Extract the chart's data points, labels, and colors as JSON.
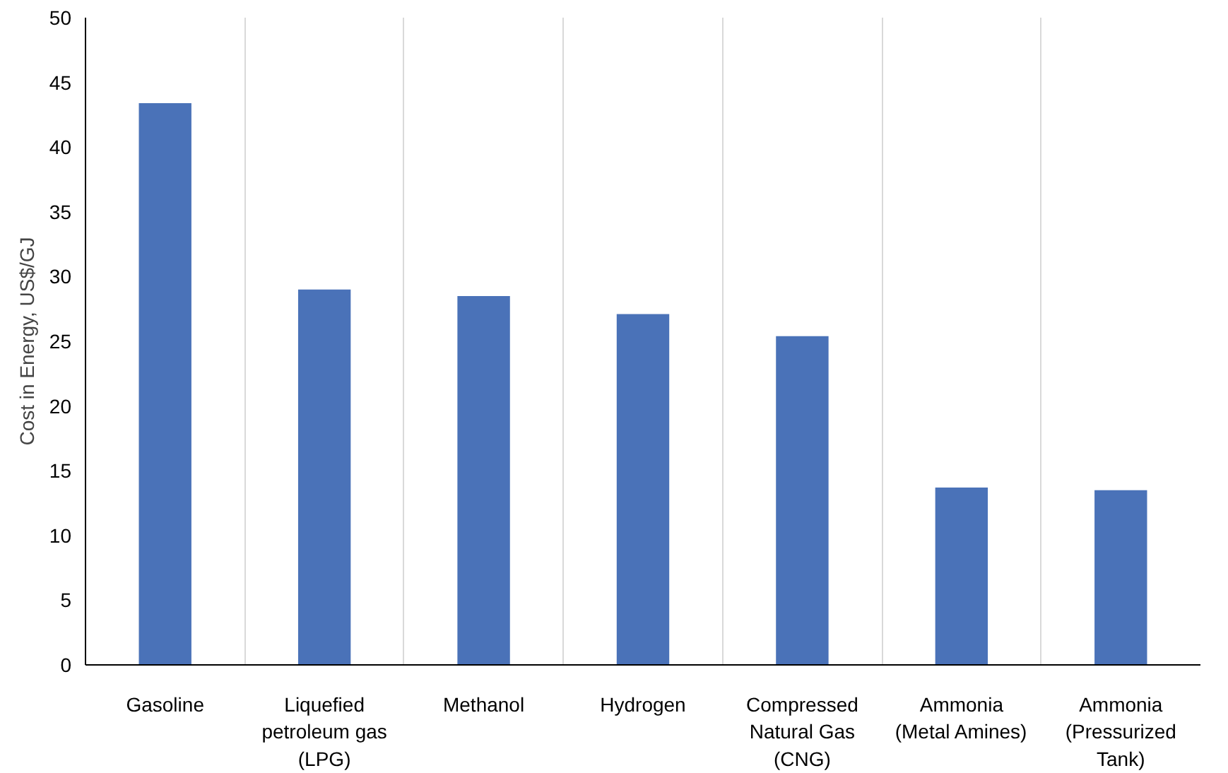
{
  "chart_data": {
    "type": "bar",
    "ylabel": "Cost in Energy, US$/GJ",
    "categories": [
      "Gasoline",
      "Liquefied\npetroleum gas\n(LPG)",
      "Methanol",
      "Hydrogen",
      "Compressed\nNatural Gas\n(CNG)",
      "Ammonia\n(Metal Amines)",
      "Ammonia\n(Pressurized\nTank)"
    ],
    "values": [
      43.4,
      29.0,
      28.5,
      27.1,
      25.4,
      13.7,
      13.5
    ],
    "color": "#4a72b8",
    "ylim": [
      0,
      50
    ],
    "yticks": [
      0,
      5,
      10,
      15,
      20,
      25,
      30,
      35,
      40,
      45,
      50
    ],
    "grid": "x"
  }
}
